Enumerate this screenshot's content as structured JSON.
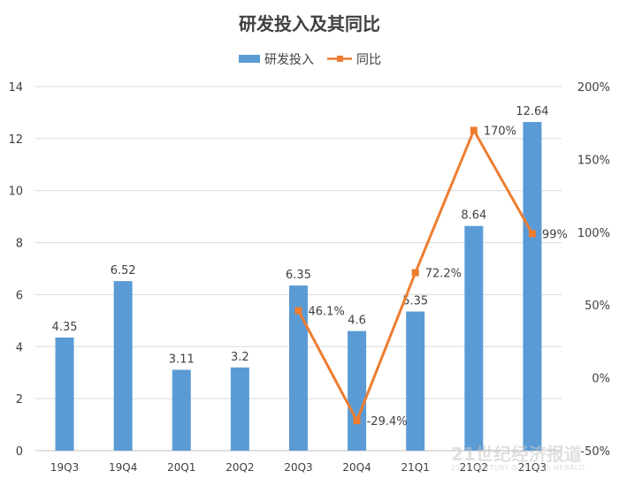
{
  "chart_data": {
    "type": "bar+line",
    "title": "研发投入及其同比",
    "categories": [
      "19Q3",
      "19Q4",
      "20Q1",
      "20Q2",
      "20Q3",
      "20Q4",
      "21Q1",
      "21Q2",
      "21Q3"
    ],
    "series": [
      {
        "name": "研发投入",
        "type": "bar",
        "axis": "left",
        "color": "#5B9BD5",
        "values": [
          4.35,
          6.52,
          3.11,
          3.2,
          6.35,
          4.6,
          5.35,
          8.64,
          12.64
        ],
        "labels": [
          "4.35",
          "6.52",
          "3.11",
          "3.2",
          "6.35",
          "4.6",
          "5.35",
          "8.64",
          "12.64"
        ]
      },
      {
        "name": "同比",
        "type": "line",
        "axis": "right",
        "color": "#ED7D31",
        "values": [
          null,
          null,
          null,
          null,
          46.1,
          -29.4,
          72.2,
          170,
          99
        ],
        "labels": [
          "",
          "",
          "",
          "",
          "46.1%",
          "-29.4%",
          "72.2%",
          "170%",
          "99%"
        ]
      }
    ],
    "y_left": {
      "range": [
        0,
        14
      ],
      "ticks": [
        "0",
        "2",
        "4",
        "6",
        "8",
        "10",
        "12",
        "14"
      ]
    },
    "y_right": {
      "range": [
        -50,
        200
      ],
      "ticks": [
        "-50%",
        "0%",
        "50%",
        "100%",
        "150%",
        "200%"
      ]
    },
    "grid": true,
    "legend": "top-center"
  },
  "watermark": {
    "main": "21世纪经济报道",
    "sub": "21ST CENTURY BUSINESS HERALD"
  }
}
